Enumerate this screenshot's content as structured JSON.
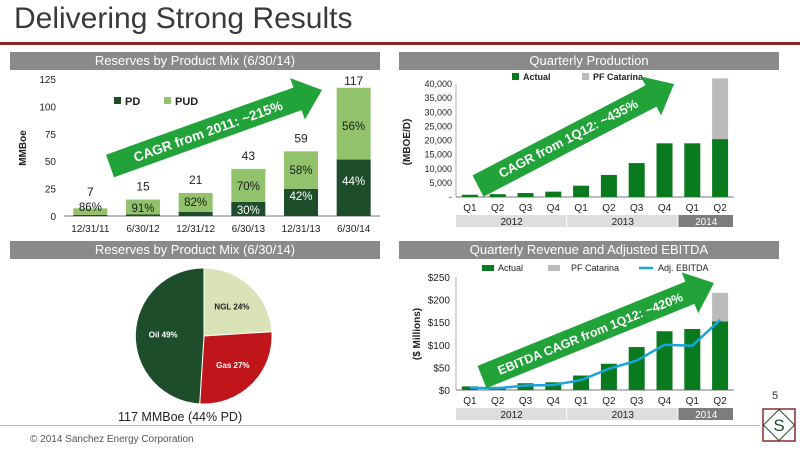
{
  "slide": {
    "title": "Delivering Strong Results",
    "page_number": "5",
    "footer": "© 2014 Sanchez Energy Corporation",
    "pie_caption": "117 MMBoe (44% PD)"
  },
  "colors": {
    "dark_green": "#1e4d2b",
    "light_green": "#92c36c",
    "bright_green": "#0a7a1e",
    "gray": "#bcbcbc",
    "red": "#c0151a",
    "blue": "#19a4dc",
    "arrow": "#22a33a",
    "header_gray": "#8a8a8a",
    "accent_red": "#8b2a2a"
  },
  "chart_data": [
    {
      "type": "bar",
      "title": "Reserves by Product Mix (6/30/14)",
      "categories": [
        "12/31/11",
        "6/30/12",
        "12/31/12",
        "6/30/13",
        "12/31/13",
        "6/30/14"
      ],
      "totals": [
        7,
        15,
        21,
        43,
        59,
        117
      ],
      "series": [
        {
          "name": "PD",
          "values": [
            1,
            1.4,
            3.8,
            12.9,
            24.8,
            51.5
          ]
        },
        {
          "name": "PUD",
          "values": [
            6,
            13.6,
            17.2,
            30.1,
            34.2,
            65.5
          ]
        }
      ],
      "pud_labels": [
        "86%",
        "91%",
        "82%",
        "70%",
        "58%",
        "56%"
      ],
      "pd_labels": [
        "",
        "",
        "",
        "30%",
        "42%",
        "44%"
      ],
      "ylabel": "MMBoe",
      "yticks": [
        0,
        25,
        50,
        75,
        100,
        125
      ],
      "ylim": [
        0,
        125
      ],
      "annotation": "CAGR from 2011: ~215%"
    },
    {
      "type": "bar",
      "title": "Quarterly Production",
      "categories": [
        "Q1",
        "Q2",
        "Q3",
        "Q4",
        "Q1",
        "Q2",
        "Q3",
        "Q4",
        "Q1",
        "Q2"
      ],
      "years": [
        "2012",
        "2013",
        "2014"
      ],
      "series": [
        {
          "name": "Actual",
          "values": [
            800,
            1000,
            1400,
            1900,
            4000,
            7800,
            12000,
            19000,
            19000,
            20500
          ]
        },
        {
          "name": "PF Catarina",
          "values": [
            0,
            0,
            0,
            0,
            0,
            0,
            0,
            0,
            0,
            21500
          ]
        }
      ],
      "ylabel": "(MBOE/D)",
      "yticks": [
        "-",
        "5,000",
        "10,000",
        "15,000",
        "20,000",
        "25,000",
        "30,000",
        "35,000",
        "40,000"
      ],
      "ylim": [
        0,
        40000
      ],
      "annotation": "CAGR from 1Q12: ~435%"
    },
    {
      "type": "pie",
      "title": "Reserves by Product Mix (6/30/14)",
      "labels": [
        "NGL",
        "Gas",
        "Oil"
      ],
      "values": [
        24,
        27,
        49
      ],
      "slice_labels": [
        "NGL 24%",
        "Gas 27%",
        "Oil 49%"
      ]
    },
    {
      "type": "bar",
      "title": "Quarterly Revenue and  Adjusted EBITDA",
      "categories": [
        "Q1",
        "Q2",
        "Q3",
        "Q4",
        "Q1",
        "Q2",
        "Q3",
        "Q4",
        "Q1",
        "Q2"
      ],
      "years": [
        "2012",
        "2013",
        "2014"
      ],
      "series": [
        {
          "name": "Actual",
          "values": [
            8,
            7,
            15,
            17,
            32,
            58,
            95,
            130,
            135,
            152
          ]
        },
        {
          "name": "PF Catarina",
          "values": [
            0,
            0,
            0,
            0,
            0,
            0,
            0,
            0,
            0,
            63
          ]
        },
        {
          "name": "Adj. EBITDA",
          "values": [
            5,
            4,
            10,
            11,
            22,
            47,
            65,
            100,
            98,
            155
          ]
        }
      ],
      "ylabel": "($ Millions)",
      "yticks": [
        "$0",
        "$50",
        "$100",
        "$150",
        "$200",
        "$250"
      ],
      "ylim": [
        0,
        250
      ],
      "annotation": "EBITDA CAGR from 1Q12: ~420%"
    }
  ]
}
